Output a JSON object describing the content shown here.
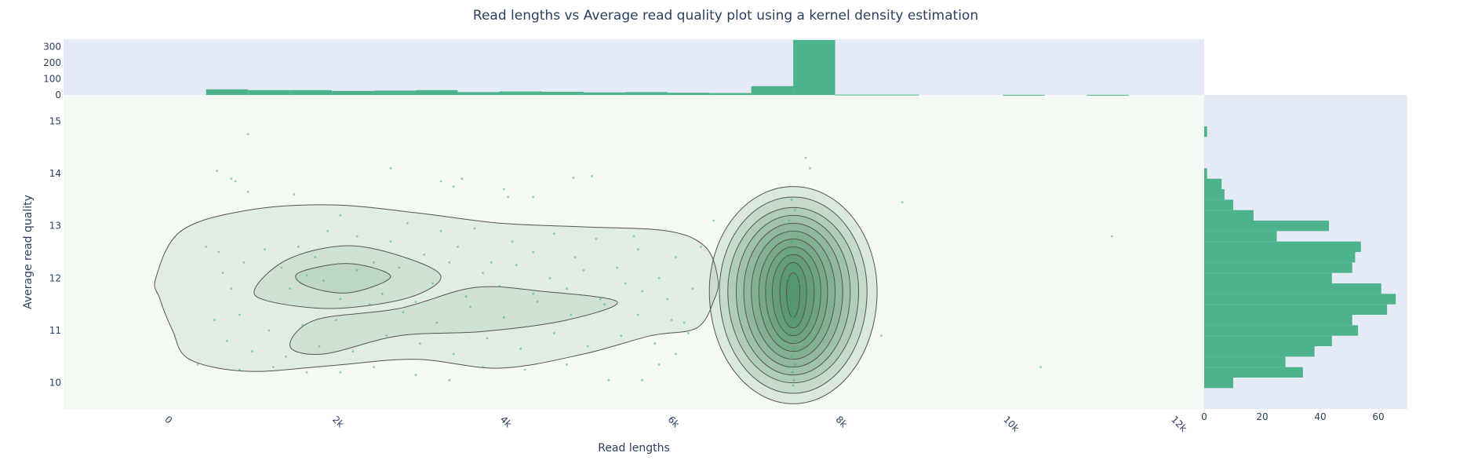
{
  "chart_data": {
    "type": "scatter",
    "title": "Read lengths vs Average read quality plot using a kernel density estimation",
    "xlabel": "Read lengths",
    "ylabel": "Average read quality",
    "xlim": [
      -1200,
      12400
    ],
    "ylim": [
      9.5,
      15.5
    ],
    "x_ticks": [
      0,
      2000,
      4000,
      6000,
      8000,
      10000,
      12000
    ],
    "x_tick_labels": [
      "0",
      "2k",
      "4k",
      "6k",
      "8k",
      "10k",
      "12k"
    ],
    "y_ticks": [
      10,
      11,
      12,
      13,
      14,
      15
    ],
    "y_tick_labels": [
      "10",
      "11",
      "12",
      "13",
      "14",
      "15"
    ],
    "colors": {
      "bar": "#4cb38d",
      "point": "#3dae7e",
      "kde_fill": "#2e7d4f",
      "kde_line": "#555555",
      "plot_bg": "#f5f9f3",
      "marginal_bg": "#e5ebf6"
    },
    "top_histogram": {
      "bin_width": 500,
      "yticks": [
        0,
        100,
        200,
        300
      ],
      "ylim": [
        0,
        345
      ],
      "bins": [
        {
          "x0": 500,
          "count": 35
        },
        {
          "x0": 1000,
          "count": 30
        },
        {
          "x0": 1500,
          "count": 30
        },
        {
          "x0": 2000,
          "count": 25
        },
        {
          "x0": 2500,
          "count": 27
        },
        {
          "x0": 3000,
          "count": 30
        },
        {
          "x0": 3500,
          "count": 18
        },
        {
          "x0": 4000,
          "count": 22
        },
        {
          "x0": 4500,
          "count": 20
        },
        {
          "x0": 5000,
          "count": 16
        },
        {
          "x0": 5500,
          "count": 18
        },
        {
          "x0": 6000,
          "count": 14
        },
        {
          "x0": 6500,
          "count": 12
        },
        {
          "x0": 7000,
          "count": 55
        },
        {
          "x0": 7500,
          "count": 340
        },
        {
          "x0": 8000,
          "count": 2
        },
        {
          "x0": 8500,
          "count": 2
        },
        {
          "x0": 10000,
          "count": 1
        },
        {
          "x0": 11000,
          "count": 1
        }
      ]
    },
    "right_histogram": {
      "bin_height": 0.2,
      "xticks": [
        0,
        20,
        40,
        60
      ],
      "xlim": [
        0,
        70
      ],
      "bins": [
        {
          "y0": 9.9,
          "count": 10
        },
        {
          "y0": 10.1,
          "count": 34
        },
        {
          "y0": 10.3,
          "count": 28
        },
        {
          "y0": 10.5,
          "count": 38
        },
        {
          "y0": 10.7,
          "count": 44
        },
        {
          "y0": 10.9,
          "count": 53
        },
        {
          "y0": 11.1,
          "count": 51
        },
        {
          "y0": 11.3,
          "count": 63
        },
        {
          "y0": 11.5,
          "count": 66
        },
        {
          "y0": 11.7,
          "count": 61
        },
        {
          "y0": 11.9,
          "count": 44
        },
        {
          "y0": 12.1,
          "count": 51
        },
        {
          "y0": 12.3,
          "count": 52
        },
        {
          "y0": 12.5,
          "count": 54
        },
        {
          "y0": 12.7,
          "count": 25
        },
        {
          "y0": 12.9,
          "count": 43
        },
        {
          "y0": 13.1,
          "count": 17
        },
        {
          "y0": 13.3,
          "count": 10
        },
        {
          "y0": 13.5,
          "count": 7
        },
        {
          "y0": 13.7,
          "count": 6
        },
        {
          "y0": 13.9,
          "count": 1
        },
        {
          "y0": 14.7,
          "count": 1
        }
      ]
    },
    "kde_contours": {
      "left_outer": [
        [
          -100,
          12
        ],
        [
          200,
          12.9
        ],
        [
          1000,
          13.3
        ],
        [
          2000,
          13.4
        ],
        [
          3000,
          13.25
        ],
        [
          4000,
          13.05
        ],
        [
          5000,
          12.98
        ],
        [
          6000,
          12.9
        ],
        [
          6450,
          12.6
        ],
        [
          6600,
          12.0
        ],
        [
          6560,
          11.6
        ],
        [
          6350,
          11.05
        ],
        [
          5800,
          10.9
        ],
        [
          5000,
          10.55
        ],
        [
          4000,
          10.28
        ],
        [
          3000,
          10.45
        ],
        [
          2000,
          10.33
        ],
        [
          1000,
          10.22
        ],
        [
          300,
          10.45
        ],
        [
          100,
          11.0
        ],
        [
          -50,
          11.6
        ]
      ],
      "left_mid_upper": [
        [
          1100,
          11.85
        ],
        [
          1500,
          12.38
        ],
        [
          2200,
          12.62
        ],
        [
          2900,
          12.38
        ],
        [
          3300,
          12.02
        ],
        [
          2900,
          11.62
        ],
        [
          2000,
          11.42
        ],
        [
          1200,
          11.58
        ]
      ],
      "left_mid_lower": [
        [
          1500,
          10.7
        ],
        [
          1800,
          11.2
        ],
        [
          2800,
          11.42
        ],
        [
          3700,
          11.82
        ],
        [
          4500,
          11.75
        ],
        [
          5400,
          11.55
        ],
        [
          4800,
          11.2
        ],
        [
          3800,
          10.98
        ],
        [
          2800,
          10.9
        ],
        [
          1900,
          10.55
        ]
      ],
      "left_inner": [
        [
          1600,
          12.1
        ],
        [
          2200,
          12.28
        ],
        [
          2700,
          12.03
        ],
        [
          2200,
          11.72
        ],
        [
          1700,
          11.85
        ]
      ],
      "right_peak": {
        "center": [
          7500,
          11.75
        ],
        "levels": [
          {
            "rx": 1000,
            "ry_top": 2.0,
            "ry_bot": 2.15
          },
          {
            "rx": 880,
            "ry_top": 1.8,
            "ry_bot": 1.95
          },
          {
            "rx": 780,
            "ry_top": 1.6,
            "ry_bot": 1.75
          },
          {
            "rx": 680,
            "ry_top": 1.45,
            "ry_bot": 1.6
          },
          {
            "rx": 590,
            "ry_top": 1.3,
            "ry_bot": 1.45
          },
          {
            "rx": 500,
            "ry_top": 1.15,
            "ry_bot": 1.3
          },
          {
            "rx": 410,
            "ry_top": 1.0,
            "ry_bot": 1.15
          },
          {
            "rx": 330,
            "ry_top": 0.85,
            "ry_bot": 1.0
          },
          {
            "rx": 250,
            "ry_top": 0.7,
            "ry_bot": 0.85
          },
          {
            "rx": 160,
            "ry_top": 0.55,
            "ry_bot": 0.7
          },
          {
            "rx": 80,
            "ry_top": 0.35,
            "ry_bot": 0.5
          }
        ]
      }
    },
    "points": [
      [
        1000,
        14.75
      ],
      [
        630,
        14.05
      ],
      [
        800,
        13.9
      ],
      [
        850,
        13.85
      ],
      [
        1000,
        13.65
      ],
      [
        1550,
        13.6
      ],
      [
        3300,
        13.85
      ],
      [
        2700,
        14.1
      ],
      [
        3550,
        13.9
      ],
      [
        3450,
        13.75
      ],
      [
        4050,
        13.7
      ],
      [
        4100,
        13.55
      ],
      [
        4400,
        13.55
      ],
      [
        4880,
        13.92
      ],
      [
        5100,
        13.95
      ],
      [
        5600,
        12.8
      ],
      [
        6550,
        13.1
      ],
      [
        6400,
        12.6
      ],
      [
        7650,
        14.3
      ],
      [
        7700,
        14.1
      ],
      [
        8800,
        13.45
      ],
      [
        11300,
        12.8
      ],
      [
        10450,
        10.3
      ],
      [
        8550,
        10.9
      ],
      [
        500,
        12.6
      ],
      [
        650,
        12.5
      ],
      [
        700,
        12.1
      ],
      [
        800,
        11.8
      ],
      [
        950,
        12.3
      ],
      [
        1200,
        12.55
      ],
      [
        1400,
        12.2
      ],
      [
        1600,
        12.6
      ],
      [
        1800,
        12.4
      ],
      [
        1950,
        12.9
      ],
      [
        2100,
        13.2
      ],
      [
        2300,
        12.8
      ],
      [
        2500,
        12.3
      ],
      [
        2700,
        12.7
      ],
      [
        2900,
        13.05
      ],
      [
        3100,
        12.45
      ],
      [
        3300,
        12.9
      ],
      [
        3500,
        12.6
      ],
      [
        3700,
        12.95
      ],
      [
        3900,
        12.3
      ],
      [
        4150,
        12.7
      ],
      [
        4400,
        12.5
      ],
      [
        4650,
        12.85
      ],
      [
        4900,
        12.4
      ],
      [
        5150,
        12.75
      ],
      [
        5400,
        12.2
      ],
      [
        5650,
        12.55
      ],
      [
        5900,
        12.0
      ],
      [
        6100,
        12.4
      ],
      [
        6300,
        11.8
      ],
      [
        600,
        11.2
      ],
      [
        750,
        10.8
      ],
      [
        900,
        11.3
      ],
      [
        1050,
        10.6
      ],
      [
        1250,
        11.0
      ],
      [
        1450,
        10.5
      ],
      [
        1650,
        11.1
      ],
      [
        1850,
        10.7
      ],
      [
        2050,
        11.2
      ],
      [
        2250,
        10.6
      ],
      [
        2450,
        11.5
      ],
      [
        2650,
        10.9
      ],
      [
        2850,
        11.35
      ],
      [
        3050,
        10.75
      ],
      [
        3250,
        11.15
      ],
      [
        3450,
        10.55
      ],
      [
        3650,
        11.45
      ],
      [
        3850,
        10.85
      ],
      [
        4050,
        11.25
      ],
      [
        4250,
        10.65
      ],
      [
        4450,
        11.55
      ],
      [
        4650,
        10.95
      ],
      [
        4850,
        11.3
      ],
      [
        5050,
        10.7
      ],
      [
        5250,
        11.5
      ],
      [
        5450,
        10.9
      ],
      [
        5650,
        11.3
      ],
      [
        5850,
        10.75
      ],
      [
        6050,
        11.2
      ],
      [
        6250,
        10.95
      ],
      [
        400,
        10.35
      ],
      [
        900,
        10.25
      ],
      [
        1300,
        10.3
      ],
      [
        1700,
        10.2
      ],
      [
        2100,
        10.2
      ],
      [
        2500,
        10.3
      ],
      [
        3000,
        10.15
      ],
      [
        3400,
        10.05
      ],
      [
        3800,
        10.3
      ],
      [
        4300,
        10.25
      ],
      [
        4800,
        10.35
      ],
      [
        5300,
        10.05
      ],
      [
        5700,
        10.05
      ],
      [
        5900,
        10.35
      ],
      [
        6100,
        10.55
      ],
      [
        1500,
        11.8
      ],
      [
        1700,
        12.05
      ],
      [
        1900,
        11.95
      ],
      [
        2100,
        11.6
      ],
      [
        2300,
        12.15
      ],
      [
        2600,
        11.7
      ],
      [
        2800,
        12.2
      ],
      [
        3000,
        11.55
      ],
      [
        3200,
        11.9
      ],
      [
        3400,
        12.3
      ],
      [
        3600,
        11.65
      ],
      [
        3800,
        12.1
      ],
      [
        4000,
        11.85
      ],
      [
        4200,
        12.25
      ],
      [
        4400,
        11.7
      ],
      [
        4600,
        12.0
      ],
      [
        4800,
        11.8
      ],
      [
        5000,
        12.15
      ],
      [
        5200,
        11.6
      ],
      [
        5500,
        11.9
      ],
      [
        5700,
        11.75
      ],
      [
        6000,
        11.6
      ],
      [
        6200,
        11.15
      ],
      [
        7450,
        13.1
      ],
      [
        7520,
        12.9
      ],
      [
        7480,
        12.7
      ],
      [
        7550,
        12.5
      ],
      [
        7500,
        12.35
      ],
      [
        7460,
        12.2
      ],
      [
        7530,
        12.05
      ],
      [
        7490,
        11.95
      ],
      [
        7510,
        11.85
      ],
      [
        7470,
        11.75
      ],
      [
        7540,
        11.65
      ],
      [
        7500,
        11.55
      ],
      [
        7480,
        11.45
      ],
      [
        7520,
        11.35
      ],
      [
        7490,
        11.25
      ],
      [
        7510,
        11.1
      ],
      [
        7470,
        10.95
      ],
      [
        7530,
        10.8
      ],
      [
        7500,
        10.65
      ],
      [
        7480,
        10.5
      ],
      [
        7520,
        10.35
      ],
      [
        7490,
        10.2
      ],
      [
        7510,
        10.05
      ],
      [
        7500,
        9.95
      ],
      [
        7430,
        12.6
      ],
      [
        7570,
        12.3
      ],
      [
        7440,
        12.0
      ],
      [
        7560,
        11.8
      ],
      [
        7450,
        11.5
      ],
      [
        7550,
        11.2
      ],
      [
        7440,
        10.9
      ],
      [
        7560,
        10.6
      ],
      [
        7450,
        10.3
      ],
      [
        7550,
        12.8
      ],
      [
        7420,
        12.4
      ],
      [
        7580,
        11.9
      ],
      [
        7420,
        11.3
      ],
      [
        7580,
        11.0
      ],
      [
        7430,
        10.7
      ],
      [
        7520,
        13.3
      ],
      [
        7480,
        13.5
      ],
      [
        7510,
        12.15
      ],
      [
        7495,
        11.7
      ],
      [
        7505,
        11.6
      ],
      [
        7490,
        11.9
      ],
      [
        7512,
        11.4
      ],
      [
        7488,
        11.8
      ],
      [
        7500,
        12.0
      ],
      [
        7500,
        11.5
      ],
      [
        7460,
        11.65
      ],
      [
        7540,
        11.95
      ],
      [
        7505,
        12.25
      ],
      [
        7495,
        11.3
      ]
    ]
  }
}
